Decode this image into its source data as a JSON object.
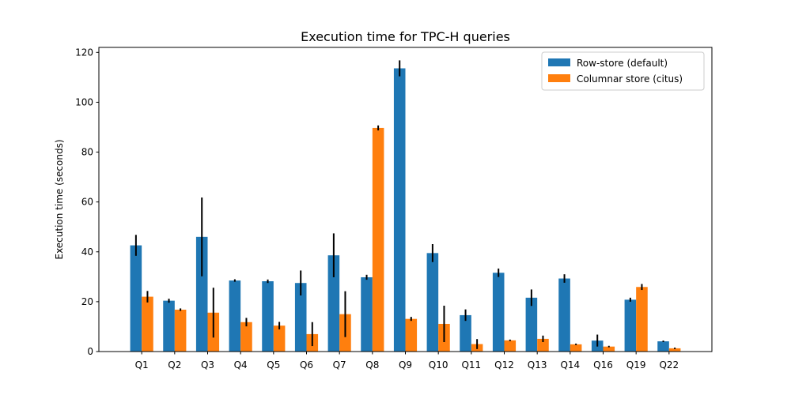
{
  "chart_data": {
    "type": "bar",
    "title": "Execution time for TPC-H queries",
    "xlabel": "",
    "ylabel": "Execution time (seconds)",
    "ylim": [
      0,
      122
    ],
    "yticks": [
      0,
      20,
      40,
      60,
      80,
      100,
      120
    ],
    "grid": false,
    "legend_position": "top-right",
    "categories": [
      "Q1",
      "Q2",
      "Q3",
      "Q4",
      "Q5",
      "Q6",
      "Q7",
      "Q8",
      "Q9",
      "Q10",
      "Q11",
      "Q12",
      "Q13",
      "Q14",
      "Q16",
      "Q19",
      "Q22"
    ],
    "series": [
      {
        "name": "Row-store (default)",
        "color": "#1f77b4",
        "values": [
          42.6,
          20.4,
          46.0,
          28.5,
          28.2,
          27.5,
          38.6,
          29.8,
          113.6,
          39.5,
          14.6,
          31.6,
          21.6,
          29.3,
          4.4,
          20.8,
          4.1
        ],
        "errors": [
          4.2,
          0.8,
          15.8,
          0.5,
          0.7,
          5.0,
          8.8,
          1.0,
          3.2,
          3.6,
          2.3,
          1.7,
          3.3,
          1.7,
          2.4,
          0.8,
          0.3
        ]
      },
      {
        "name": "Columnar store (citus)",
        "color": "#ff7f0e",
        "values": [
          22.0,
          16.8,
          15.6,
          11.8,
          10.4,
          7.0,
          15.0,
          89.7,
          13.1,
          11.1,
          3.0,
          4.5,
          5.1,
          2.9,
          2.0,
          25.9,
          1.3
        ]
      }
    ]
  }
}
